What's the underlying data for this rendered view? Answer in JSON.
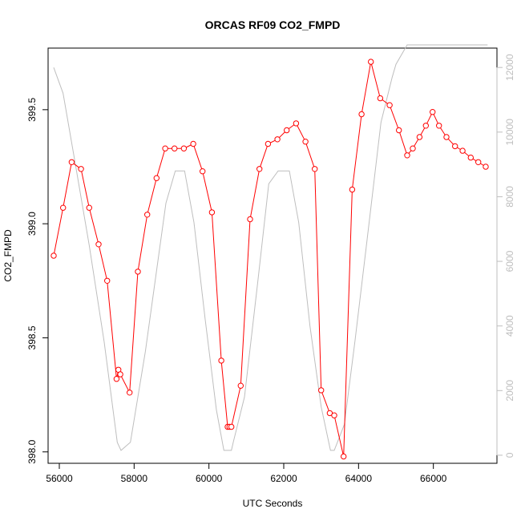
{
  "chart_data": {
    "type": "line",
    "title": "ORCAS RF09 CO2_FMPD",
    "xlabel": "UTC Seconds",
    "ylabel": "CO2_FMPD",
    "xlim": [
      55700,
      67700
    ],
    "ylim": [
      397.95,
      399.77
    ],
    "y2lim": [
      -250,
      12600
    ],
    "x_ticks": [
      56000,
      58000,
      60000,
      62000,
      64000,
      66000
    ],
    "y_ticks": [
      398.0,
      398.5,
      399.0,
      399.5
    ],
    "y_tick_labels": [
      "398.0",
      "398.5",
      "399.0",
      "399.5"
    ],
    "y2_ticks": [
      0,
      2000,
      4000,
      6000,
      8000,
      10000,
      12000
    ],
    "grid": false,
    "colors": {
      "co2": "#ff0000",
      "altitude": "#bebebe",
      "axes": "#000000",
      "right_axis": "#bebebe"
    },
    "series": [
      {
        "axis": "left",
        "style": "line+circles",
        "x": [
          55850,
          56100,
          56330,
          56580,
          56800,
          57050,
          57280,
          57530,
          57580,
          57630,
          57880,
          58100,
          58350,
          58600,
          58830,
          59080,
          59330,
          59580,
          59830,
          60080,
          60330,
          60500,
          60550,
          60600,
          60850,
          61100,
          61350,
          61580,
          61830,
          62080,
          62330,
          62580,
          62830,
          63000,
          63230,
          63350,
          63600,
          63830,
          64080,
          64330,
          64580,
          64830,
          65080,
          65300,
          65450,
          65630,
          65800,
          65980,
          66150,
          66350,
          66580,
          66780,
          67000,
          67200,
          67400
        ],
        "y": [
          398.86,
          399.07,
          399.27,
          399.24,
          399.07,
          398.91,
          398.75,
          398.32,
          398.36,
          398.34,
          398.26,
          398.79,
          399.04,
          399.2,
          399.33,
          399.33,
          399.33,
          399.35,
          399.23,
          399.05,
          398.4,
          398.11,
          398.11,
          398.11,
          398.29,
          399.02,
          399.24,
          399.35,
          399.37,
          399.41,
          399.44,
          399.36,
          399.24,
          398.27,
          398.17,
          398.16,
          397.98,
          399.15,
          399.48,
          399.71,
          399.55,
          399.52,
          399.41,
          399.3,
          399.33,
          399.38,
          399.43,
          399.49,
          399.43,
          399.38,
          399.34,
          399.32,
          399.29,
          399.27,
          399.25
        ]
      },
      {
        "axis": "right",
        "style": "line",
        "x": [
          55850,
          56100,
          56400,
          56800,
          57200,
          57550,
          57650,
          57900,
          58300,
          58850,
          59100,
          59350,
          59600,
          59900,
          60200,
          60400,
          60600,
          60650,
          60950,
          61300,
          61600,
          61850,
          62150,
          62400,
          62700,
          63000,
          63250,
          63350,
          63620,
          63900,
          64200,
          64600,
          64900,
          65000,
          65300,
          65900,
          66500,
          67450
        ],
        "y": [
          12000,
          11200,
          9200,
          6500,
          3500,
          400,
          150,
          400,
          3200,
          7800,
          8800,
          8800,
          7200,
          4200,
          1400,
          150,
          150,
          400,
          1800,
          5300,
          8400,
          8800,
          8800,
          7200,
          4000,
          1500,
          150,
          150,
          950,
          3500,
          6400,
          10300,
          11700,
          12100,
          12700,
          12700,
          12700,
          12700
        ]
      }
    ]
  }
}
